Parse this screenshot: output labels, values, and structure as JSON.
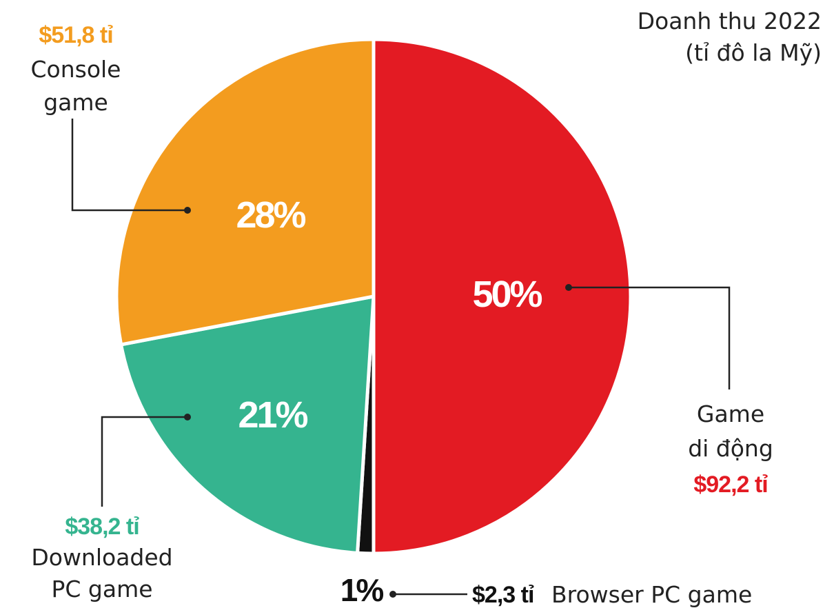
{
  "chart_data": {
    "type": "pie",
    "title": "Doanh thu 2022",
    "subtitle": "(tỉ đô la Mỹ)",
    "slices": [
      {
        "label_line1": "Game",
        "label_line2": "di động",
        "percent": 50,
        "percent_label": "50%",
        "value": 92.2,
        "value_label": "$92,2 tỉ",
        "color": "#e31b23"
      },
      {
        "label_line1": "Browser PC game",
        "label_line2": "",
        "percent": 1,
        "percent_label": "1%",
        "value": 2.3,
        "value_label": "$2,3 tỉ",
        "color": "#111111"
      },
      {
        "label_line1": "Downloaded",
        "label_line2": "PC game",
        "percent": 21,
        "percent_label": "21%",
        "value": 38.2,
        "value_label": "$38,2 tỉ",
        "color": "#35b48f"
      },
      {
        "label_line1": "Console",
        "label_line2": "game",
        "percent": 28,
        "percent_label": "28%",
        "value": 51.8,
        "value_label": "$51,8 tỉ",
        "color": "#f39c1f"
      }
    ]
  }
}
